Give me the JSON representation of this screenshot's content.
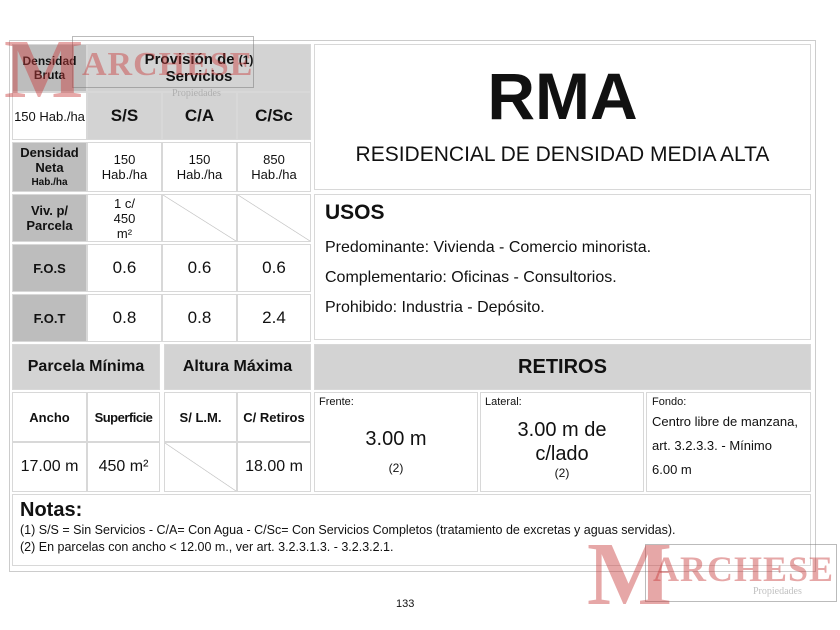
{
  "watermark": {
    "brand": "MARCHESE",
    "sub": "Propiedades"
  },
  "left_table": {
    "densidad_bruta_label": "Densidad Bruta",
    "densidad_bruta_value": "150 Hab./ha",
    "provision_title": "Provisión de",
    "provision_note": "(1)",
    "provision_title2": "Servicios",
    "columns": [
      "S/S",
      "C/A",
      "C/Sc"
    ],
    "rows": [
      {
        "label": "Densidad Neta",
        "sublabel": "Hab./ha",
        "values": [
          "150 Hab./ha",
          "150 Hab./ha",
          "850 Hab./ha"
        ]
      },
      {
        "label": "Viv. p/ Parcela",
        "values": [
          "1 c/ 450 m²",
          "",
          ""
        ]
      },
      {
        "label": "F.O.S",
        "values": [
          "0.6",
          "0.6",
          "0.6"
        ]
      },
      {
        "label": "F.O.T",
        "values": [
          "0.8",
          "0.8",
          "2.4"
        ]
      }
    ]
  },
  "zone": {
    "code": "RMA",
    "name": "RESIDENCIAL DE DENSIDAD MEDIA ALTA"
  },
  "usos": {
    "title": "USOS",
    "items": [
      "Predominante: Vivienda - Comercio minorista.",
      "Complementario: Oficinas - Consultorios.",
      "Prohibido: Industria - Depósito."
    ]
  },
  "parcela": {
    "title": "Parcela Mínima",
    "ancho_label": "Ancho",
    "superficie_label": "Superficie",
    "ancho": "17.00 m",
    "superficie": "450 m²"
  },
  "altura": {
    "title": "Altura Máxima",
    "slm_label": "S/ L.M.",
    "retiros_label": "C/ Retiros",
    "retiros": "18.00 m"
  },
  "retiros": {
    "title": "RETIROS",
    "frente": {
      "label": "Frente:",
      "value": "3.00 m",
      "note": "(2)"
    },
    "lateral": {
      "label": "Lateral:",
      "value": "3.00 m de c/lado",
      "note": "(2)"
    },
    "fondo": {
      "label": "Fondo:",
      "lines": [
        "Centro libre de manzana,",
        "art. 3.2.3.3. - Mínimo",
        "6.00 m"
      ]
    }
  },
  "notas": {
    "title": "Notas:",
    "items": [
      "(1) S/S = Sin Servicios - C/A= Con Agua - C/Sc= Con Servicios Completos (tratamiento de excretas y aguas servidas).",
      "(2) En parcelas con ancho < 12.00 m., ver art. 3.2.3.1.3. - 3.2.3.2.1."
    ]
  },
  "page_number": "133"
}
